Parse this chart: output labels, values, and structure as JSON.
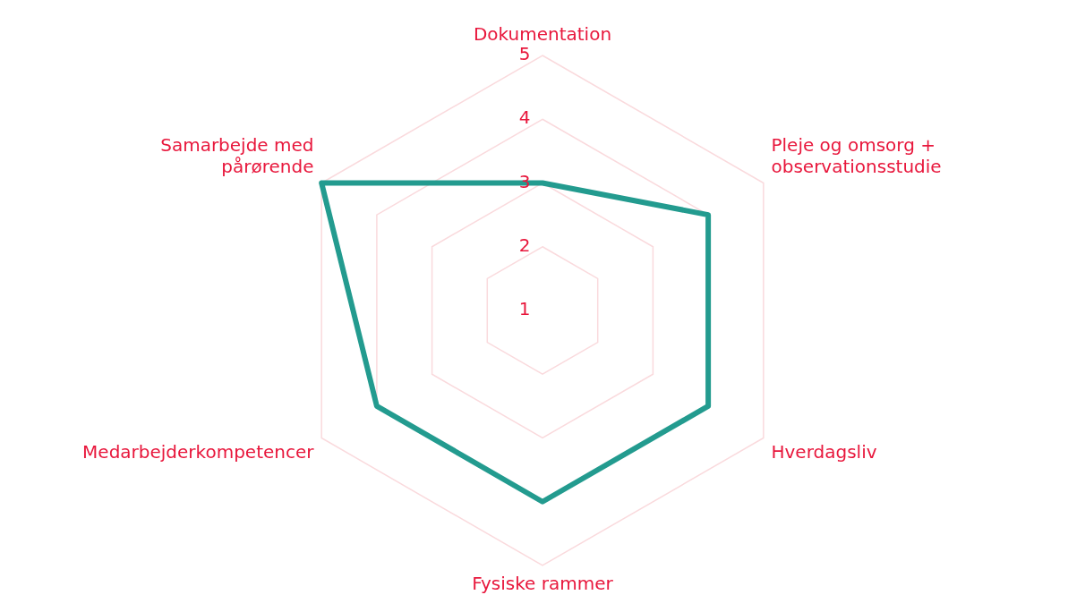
{
  "chart_data": {
    "type": "radar",
    "categories": [
      "Dokumentation",
      "Pleje og omsorg + observationsstudie",
      "Hverdagsliv",
      "Fysiske rammer",
      "Medarbejderkompetencer",
      "Samarbejde med pårørende"
    ],
    "series": [
      {
        "color": "#239b8f",
        "values": [
          3,
          4,
          4,
          4,
          4,
          5
        ]
      }
    ],
    "ylim": [
      1,
      5
    ],
    "yticks": [
      1,
      2,
      3,
      4,
      5
    ],
    "grid": true,
    "legend": false,
    "marker": "none"
  }
}
